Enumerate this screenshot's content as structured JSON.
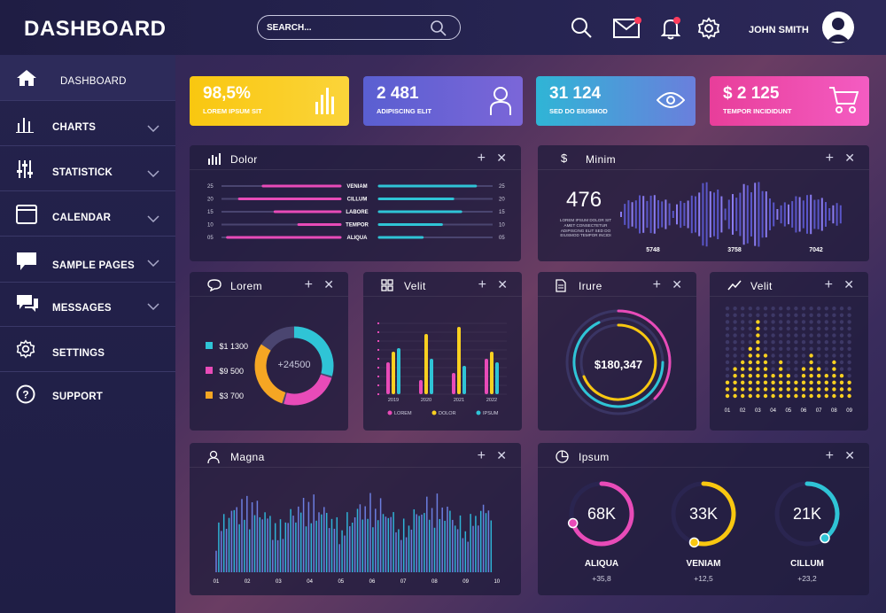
{
  "header": {
    "title": "DASHBOARD",
    "search_placeholder": "SEARCH...",
    "username": "JOHN SMITH"
  },
  "sidebar": {
    "items": [
      {
        "label": "DASHBOARD"
      },
      {
        "label": "CHARTS"
      },
      {
        "label": "STATISTICK"
      },
      {
        "label": "CALENDAR"
      },
      {
        "label": "SAMPLE PAGES"
      },
      {
        "label": "MESSAGES"
      },
      {
        "label": "SETTINGS"
      },
      {
        "label": "SUPPORT"
      }
    ]
  },
  "stats": [
    {
      "value": "98,5%",
      "label": "LOREM IPSUM SIT",
      "color_from": "#f9c710",
      "color_to": "#fbd43a"
    },
    {
      "value": "2 481",
      "label": "ADIPISCING ELIT",
      "color_from": "#5a5fd1",
      "color_to": "#7b66d8"
    },
    {
      "value": "31 124",
      "label": "SED DO EIUSMOD",
      "color_from": "#2fb5d6",
      "color_to": "#6a7fdc"
    },
    {
      "value": "$ 2 125",
      "label": "TEMPOR INCIDIDUNT",
      "color_from": "#e83e9a",
      "color_to": "#f45cc2"
    }
  ],
  "panels": {
    "dolor": {
      "title": "Dolor",
      "rows": [
        {
          "label": "VENIAM",
          "tick": "25",
          "left": 0.65,
          "right": 0.85
        },
        {
          "label": "CILLUM",
          "tick": "20",
          "left": 0.85,
          "right": 0.65
        },
        {
          "label": "LABORE",
          "tick": "15",
          "left": 0.55,
          "right": 0.72
        },
        {
          "label": "TEMPOR",
          "tick": "10",
          "left": 0.35,
          "right": 0.55
        },
        {
          "label": "ALIQUA",
          "tick": "05",
          "left": 0.95,
          "right": 0.38
        }
      ]
    },
    "minim": {
      "title": "Minim",
      "value": "476",
      "text": "LOREM IPSUM DOLOR SIT AMET CONSECTETUR ADIPISCING ELIT SED DO EIUSMOD TEMPOR INCIDI",
      "ticks": [
        "5748",
        "3758",
        "7042"
      ]
    },
    "lorem": {
      "title": "Lorem",
      "center": "+24500",
      "items": [
        {
          "label": "$1 1300",
          "color": "#2fc4d6",
          "share": 0.3
        },
        {
          "label": "$9 500",
          "color": "#e84bb8",
          "share": 0.25
        },
        {
          "label": "$3 700",
          "color": "#f5a623",
          "share": 0.3
        }
      ]
    },
    "velit_bars": {
      "title": "Velit",
      "categories": [
        "2019",
        "2020",
        "2021",
        "2022"
      ],
      "legend": [
        {
          "label": "LOREM",
          "color": "#e84bb8"
        },
        {
          "label": "DOLOR",
          "color": "#f9d020"
        },
        {
          "label": "IPSUM",
          "color": "#2fc4d6"
        }
      ],
      "series": [
        {
          "name": "LOREM",
          "values": [
            45,
            20,
            30,
            50
          ]
        },
        {
          "name": "DOLOR",
          "values": [
            60,
            85,
            95,
            60
          ]
        },
        {
          "name": "IPSUM",
          "values": [
            65,
            50,
            40,
            45
          ]
        }
      ]
    },
    "irure": {
      "title": "Irure",
      "value": "$180,347"
    },
    "velit_dots": {
      "title": "Velit",
      "ticks": [
        "01",
        "02",
        "03",
        "04",
        "05",
        "06",
        "07",
        "08",
        "09"
      ],
      "values": [
        3,
        5,
        6,
        8,
        12,
        7,
        4,
        6,
        4,
        3,
        5,
        7,
        5,
        4,
        6,
        4,
        3
      ]
    },
    "magna": {
      "title": "Magna",
      "ticks": [
        "01",
        "02",
        "03",
        "04",
        "05",
        "06",
        "07",
        "08",
        "09",
        "10"
      ]
    },
    "ipsum": {
      "title": "Ipsum",
      "gauges": [
        {
          "value": "68K",
          "label": "ALIQUA",
          "delta": "+35,8",
          "color": "#e84bb8",
          "fraction": 0.7
        },
        {
          "value": "33K",
          "label": "VENIAM",
          "delta": "+12,5",
          "color": "#f9c710",
          "fraction": 0.55
        },
        {
          "value": "21K",
          "label": "CILLUM",
          "delta": "+23,2",
          "color": "#2fc4d6",
          "fraction": 0.4
        }
      ]
    }
  }
}
